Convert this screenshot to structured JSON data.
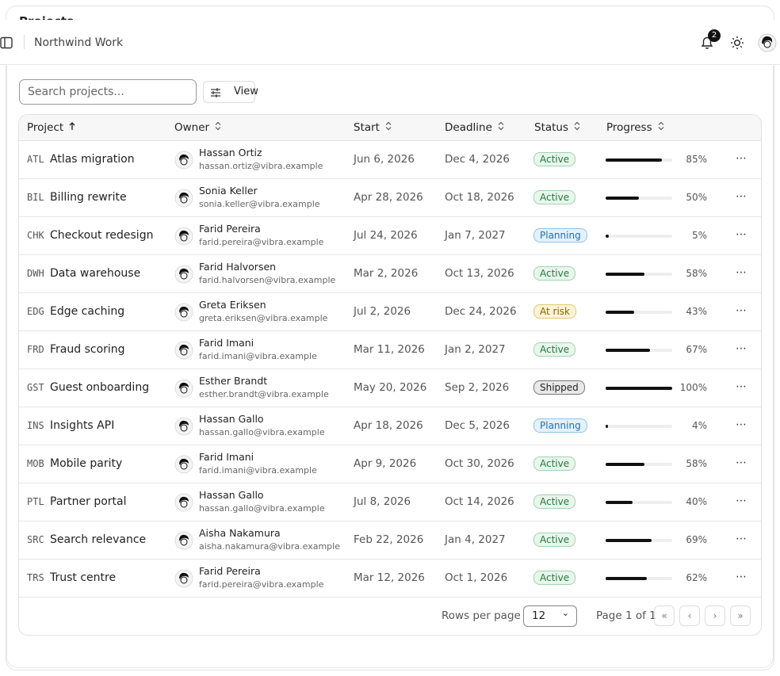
{
  "header": {
    "page_title": "Projects",
    "workspace": "Northwind Work",
    "notification_count": "2"
  },
  "toolbar": {
    "search_placeholder": "Search projects...",
    "view_button": "View"
  },
  "table": {
    "columns": [
      "Project",
      "Owner",
      "Start",
      "Deadline",
      "Status",
      "Progress"
    ],
    "rows": [
      {
        "code": "ATL",
        "name": "Atlas migration",
        "owner": "Hassan Ortiz",
        "email": "hassan.ortiz@vibra.example",
        "start": "Jun 6, 2026",
        "deadline": "Dec 4, 2026",
        "status": "Active",
        "progress": 85,
        "progress_label": "85%"
      },
      {
        "code": "BIL",
        "name": "Billing rewrite",
        "owner": "Sonia Keller",
        "email": "sonia.keller@vibra.example",
        "start": "Apr 28, 2026",
        "deadline": "Oct 18, 2026",
        "status": "Active",
        "progress": 50,
        "progress_label": "50%"
      },
      {
        "code": "CHK",
        "name": "Checkout redesign",
        "owner": "Farid Pereira",
        "email": "farid.pereira@vibra.example",
        "start": "Jul 24, 2026",
        "deadline": "Jan 7, 2027",
        "status": "Planning",
        "progress": 5,
        "progress_label": "5%"
      },
      {
        "code": "DWH",
        "name": "Data warehouse",
        "owner": "Farid Halvorsen",
        "email": "farid.halvorsen@vibra.example",
        "start": "Mar 2, 2026",
        "deadline": "Oct 13, 2026",
        "status": "Active",
        "progress": 58,
        "progress_label": "58%"
      },
      {
        "code": "EDG",
        "name": "Edge caching",
        "owner": "Greta Eriksen",
        "email": "greta.eriksen@vibra.example",
        "start": "Jul 2, 2026",
        "deadline": "Dec 24, 2026",
        "status": "At risk",
        "progress": 43,
        "progress_label": "43%"
      },
      {
        "code": "FRD",
        "name": "Fraud scoring",
        "owner": "Farid Imani",
        "email": "farid.imani@vibra.example",
        "start": "Mar 11, 2026",
        "deadline": "Jan 2, 2027",
        "status": "Active",
        "progress": 67,
        "progress_label": "67%"
      },
      {
        "code": "GST",
        "name": "Guest onboarding",
        "owner": "Esther Brandt",
        "email": "esther.brandt@vibra.example",
        "start": "May 20, 2026",
        "deadline": "Sep 2, 2026",
        "status": "Shipped",
        "progress": 100,
        "progress_label": "100%"
      },
      {
        "code": "INS",
        "name": "Insights API",
        "owner": "Hassan Gallo",
        "email": "hassan.gallo@vibra.example",
        "start": "Apr 18, 2026",
        "deadline": "Dec 5, 2026",
        "status": "Planning",
        "progress": 4,
        "progress_label": "4%"
      },
      {
        "code": "MOB",
        "name": "Mobile parity",
        "owner": "Farid Imani",
        "email": "farid.imani@vibra.example",
        "start": "Apr 9, 2026",
        "deadline": "Oct 30, 2026",
        "status": "Active",
        "progress": 58,
        "progress_label": "58%"
      },
      {
        "code": "PTL",
        "name": "Partner portal",
        "owner": "Hassan Gallo",
        "email": "hassan.gallo@vibra.example",
        "start": "Jul 8, 2026",
        "deadline": "Oct 14, 2026",
        "status": "Active",
        "progress": 40,
        "progress_label": "40%"
      },
      {
        "code": "SRC",
        "name": "Search relevance",
        "owner": "Aisha Nakamura",
        "email": "aisha.nakamura@vibra.example",
        "start": "Feb 22, 2026",
        "deadline": "Jan 4, 2027",
        "status": "Active",
        "progress": 69,
        "progress_label": "69%"
      },
      {
        "code": "TRS",
        "name": "Trust centre",
        "owner": "Farid Pereira",
        "email": "farid.pereira@vibra.example",
        "start": "Mar 12, 2026",
        "deadline": "Oct 1, 2026",
        "status": "Active",
        "progress": 62,
        "progress_label": "62%"
      }
    ]
  },
  "footer": {
    "rows_per_page_label": "Rows per page",
    "rows_per_page": "12",
    "page_label": "Page 1 of 1"
  }
}
